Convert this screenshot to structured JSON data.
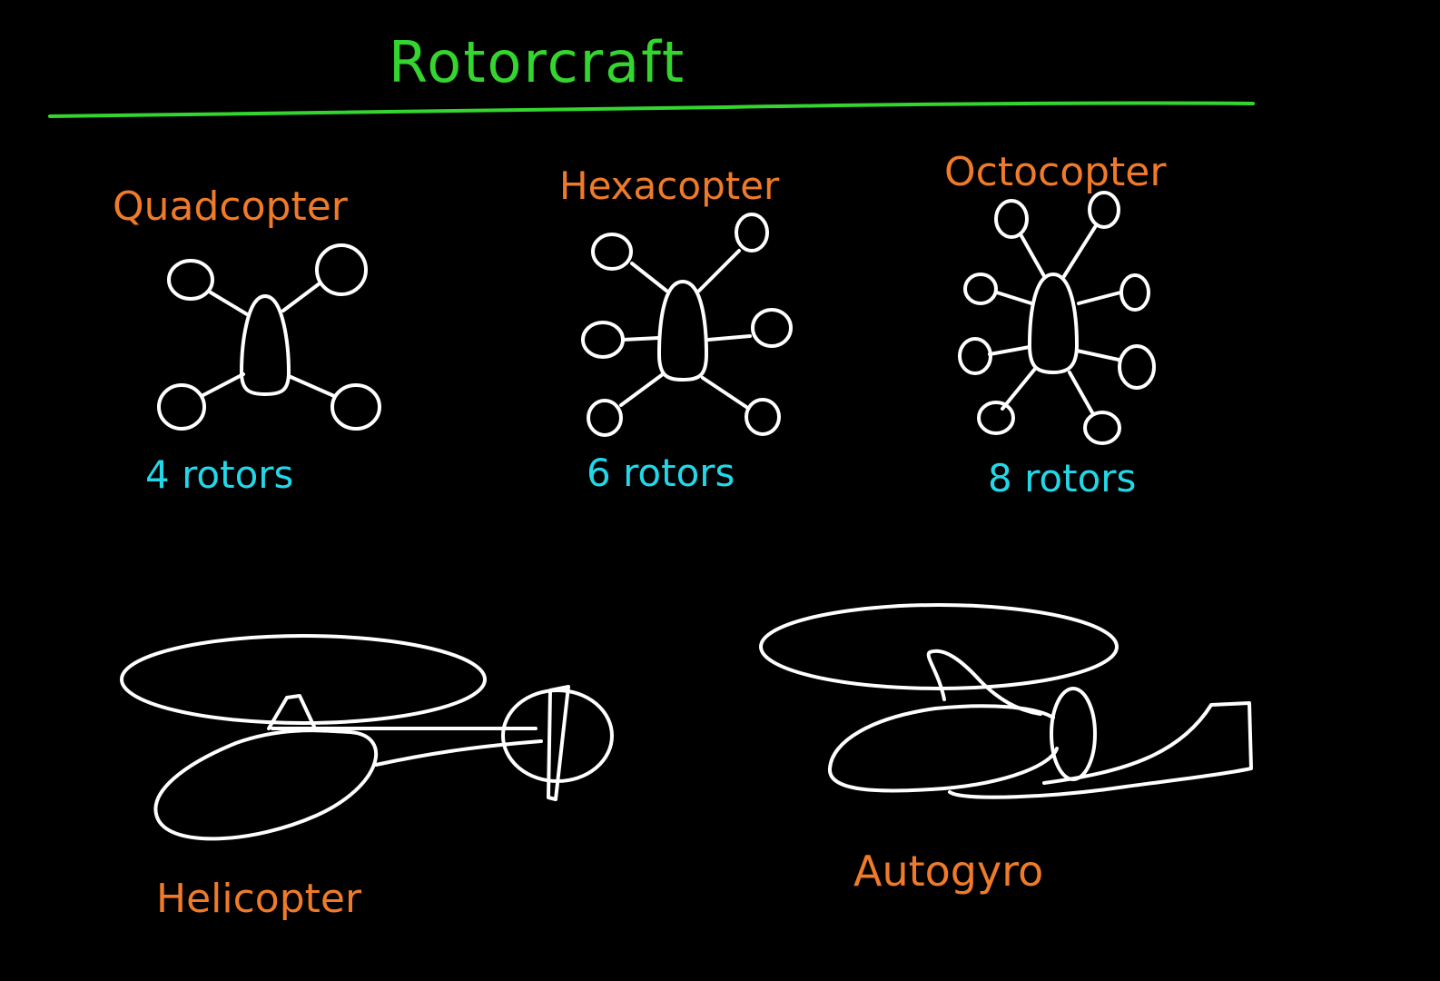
{
  "title": "Rotorcraft",
  "multirotors": [
    {
      "name": "Quadcopter",
      "rotor_count_text": "4 rotors"
    },
    {
      "name": "Hexacopter",
      "rotor_count_text": "6 rotors"
    },
    {
      "name": "Octocopter",
      "rotor_count_text": "8 rotors"
    }
  ],
  "single_rotor": [
    {
      "name": "Helicopter"
    },
    {
      "name": "Autogyro"
    }
  ],
  "colors": {
    "background": "#000000",
    "title": "#35d52f",
    "names": "#ef7b2a",
    "rotor_counts": "#22d8e8",
    "drawings": "#ffffff"
  }
}
